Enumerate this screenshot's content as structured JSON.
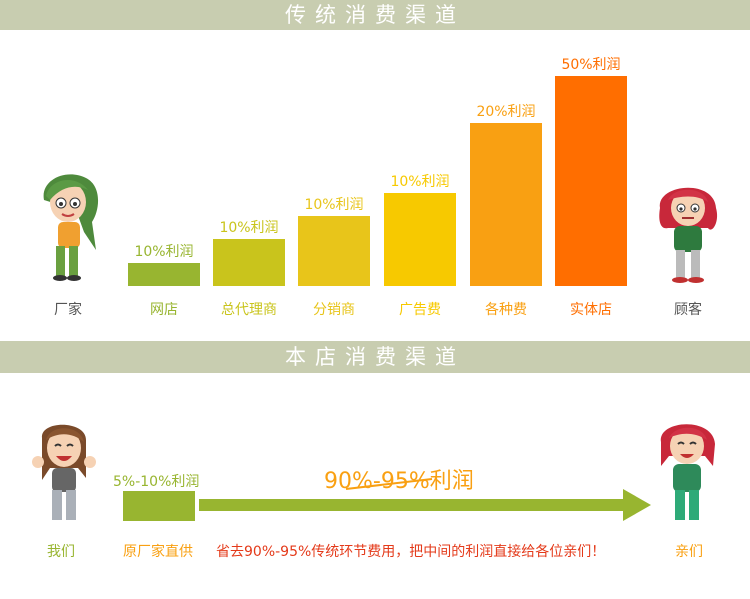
{
  "section1": {
    "title": "传统消费渠道",
    "left_label": "厂家",
    "right_label": "顾客",
    "chart_data": {
      "type": "bar",
      "categories": [
        "网店",
        "总代理商",
        "分销商",
        "广告费",
        "各种费",
        "实体店"
      ],
      "values": [
        10,
        20,
        30,
        40,
        70,
        90
      ],
      "data_labels": [
        "10%利润",
        "10%利润",
        "10%利润",
        "10%利润",
        "20%利润",
        "50%利润"
      ],
      "colors": [
        "#98b530",
        "#c9c41c",
        "#e8c51a",
        "#f7c900",
        "#f9a012",
        "#ff6e00"
      ],
      "label_colors": [
        "#98b530",
        "#c9c41c",
        "#e8c51a",
        "#f7c900",
        "#f9a012",
        "#ff6e00"
      ]
    }
  },
  "section2": {
    "title": "本店消费渠道",
    "left_label": "我们",
    "right_label": "亲们",
    "supplier_profit": "5%-10%利润",
    "crossed_profit": "90%-95%利润",
    "supplier_label": "原厂家直供",
    "savings_note": "省去90%-95%传统环节费用，把中间的利润直接给各位亲们！",
    "colors": {
      "arrow": "#98b530",
      "green": "#98b530",
      "orange": "#f9a012",
      "red": "#e43a1a"
    }
  }
}
